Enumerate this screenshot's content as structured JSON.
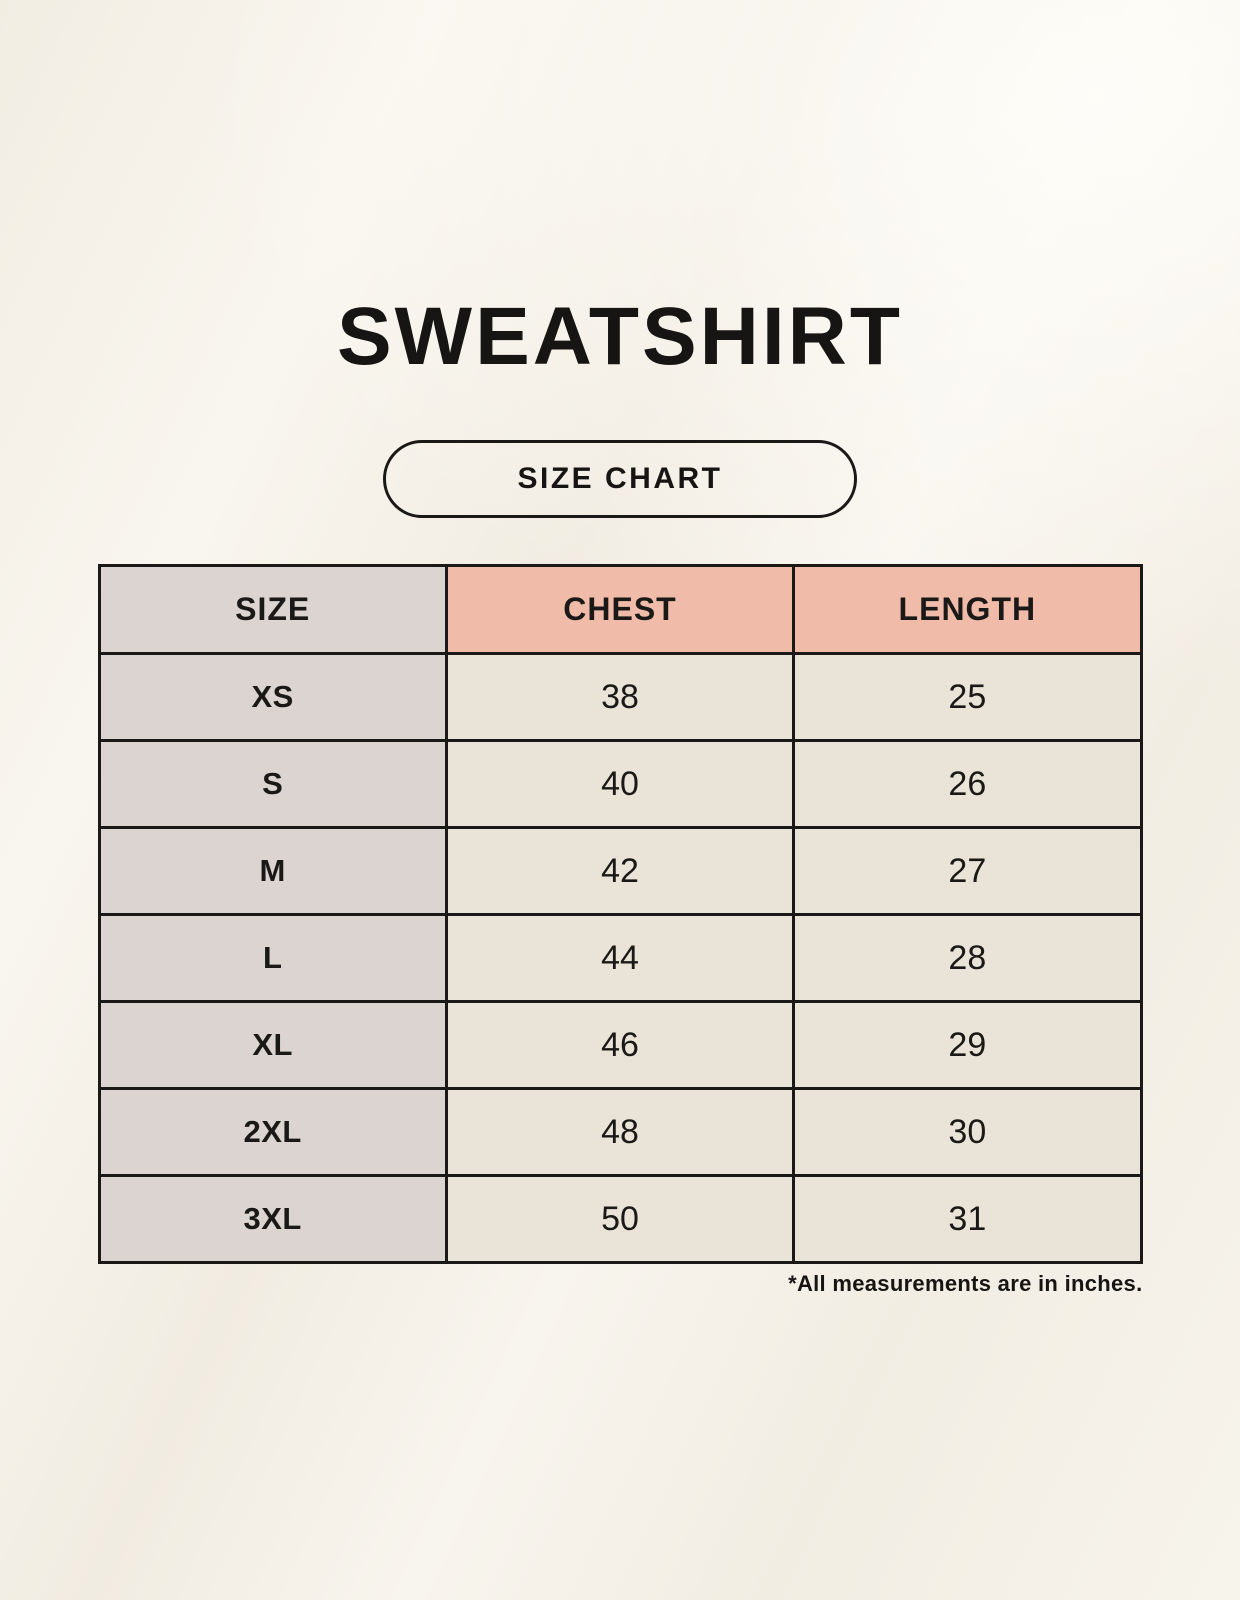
{
  "page": {
    "title": "SWEATSHIRT",
    "badge_label": "SIZE CHART",
    "footnote": "*All measurements are in inches."
  },
  "colors": {
    "background": "#F5F1E9",
    "header_accent": "#F0BCA9",
    "size_column": "#DBD4D0",
    "data_cell": "#EAE4D8",
    "border": "#1B1917",
    "text": "#171513"
  },
  "table": {
    "columns": [
      "SIZE",
      "CHEST",
      "LENGTH"
    ],
    "rows": [
      [
        "XS",
        "38",
        "25"
      ],
      [
        "S",
        "40",
        "26"
      ],
      [
        "M",
        "42",
        "27"
      ],
      [
        "L",
        "44",
        "28"
      ],
      [
        "XL",
        "46",
        "29"
      ],
      [
        "2XL",
        "48",
        "30"
      ],
      [
        "3XL",
        "50",
        "31"
      ]
    ]
  },
  "chart_data": {
    "type": "table",
    "title": "SWEATSHIRT",
    "columns": [
      "SIZE",
      "CHEST",
      "LENGTH"
    ],
    "rows": [
      [
        "XS",
        38,
        25
      ],
      [
        "S",
        40,
        26
      ],
      [
        "M",
        42,
        27
      ],
      [
        "L",
        44,
        28
      ],
      [
        "XL",
        46,
        29
      ],
      [
        "2XL",
        48,
        30
      ],
      [
        "3XL",
        50,
        31
      ]
    ],
    "units": "inches",
    "notes": "*All measurements are in inches."
  }
}
